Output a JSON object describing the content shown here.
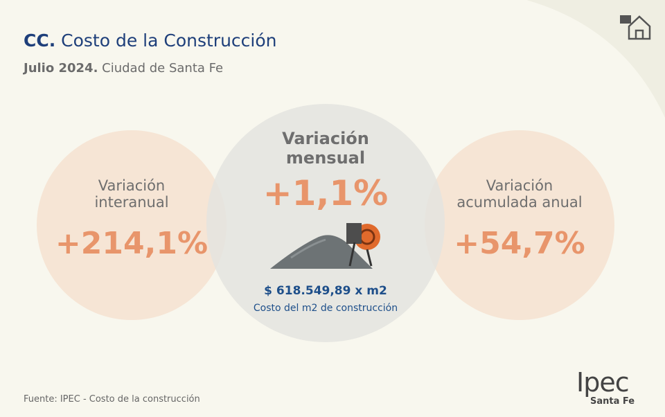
{
  "header": {
    "code": "CC.",
    "title": "Costo de la Construcción",
    "period": "Julio 2024.",
    "place": "Ciudad de Santa Fe"
  },
  "circles": [
    {
      "label": [
        "Variación",
        "interanual"
      ],
      "value": "+214,1%"
    },
    {
      "label": [
        "Variación",
        "mensual"
      ],
      "value": "+1,1%",
      "price": "$ 618.549,89 x m2",
      "caption": "Costo del m2 de construcción"
    },
    {
      "label": [
        "Variación",
        "acumulada anual"
      ],
      "value": "+54,7%"
    }
  ],
  "footer": {
    "source": "Fuente: IPEC - Costo de la construcción",
    "logo": "Ipec",
    "logo_sub": "Santa Fe"
  }
}
